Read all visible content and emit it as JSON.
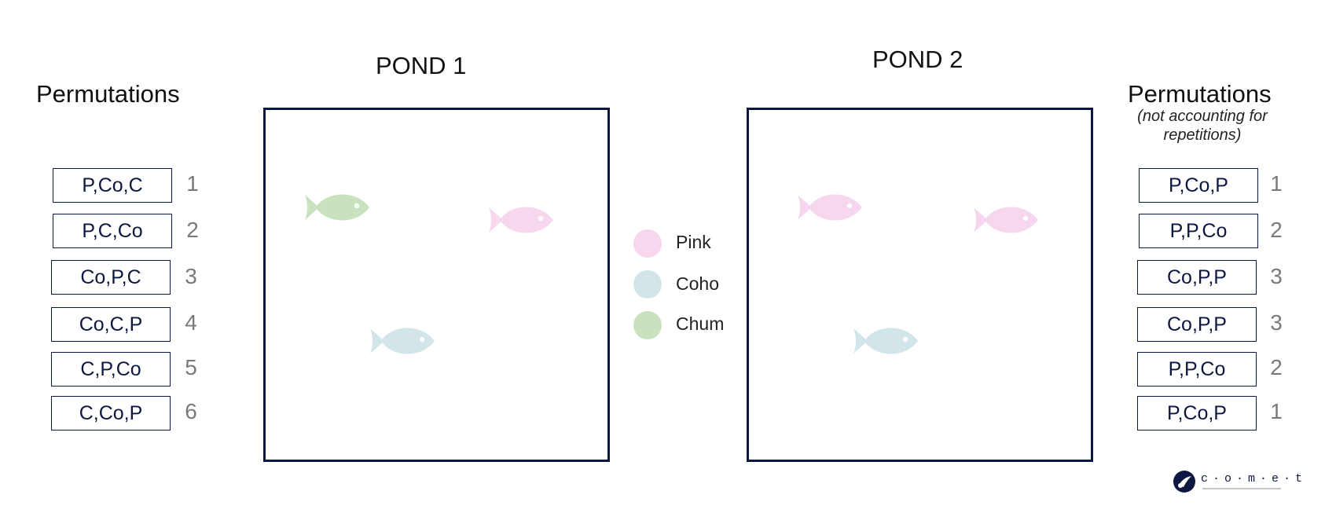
{
  "left_panel": {
    "heading": "Permutations",
    "items": [
      {
        "label": "P,Co,C",
        "number": "1"
      },
      {
        "label": "P,C,Co",
        "number": "2"
      },
      {
        "label": "Co,P,C",
        "number": "3"
      },
      {
        "label": "Co,C,P",
        "number": "4"
      },
      {
        "label": "C,P,Co",
        "number": "5"
      },
      {
        "label": "C,Co,P",
        "number": "6"
      }
    ]
  },
  "right_panel": {
    "heading": "Permutations",
    "note": "(not accounting for repetitions)",
    "items": [
      {
        "label": "P,Co,P",
        "number": "1"
      },
      {
        "label": "P,P,Co",
        "number": "2"
      },
      {
        "label": "Co,P,P",
        "number": "3"
      },
      {
        "label": "Co,P,P",
        "number": "3"
      },
      {
        "label": "P,P,Co",
        "number": "2"
      },
      {
        "label": "P,Co,P",
        "number": "1"
      }
    ]
  },
  "ponds": [
    {
      "title": "POND 1",
      "fish": [
        "Chum",
        "Pink",
        "Coho"
      ]
    },
    {
      "title": "POND 2",
      "fish": [
        "Pink",
        "Pink",
        "Coho"
      ]
    }
  ],
  "legend": [
    {
      "label": "Pink",
      "color": "#f6d7ee"
    },
    {
      "label": "Coho",
      "color": "#d2e6ea"
    },
    {
      "label": "Chum",
      "color": "#c9e2bd"
    }
  ],
  "colors": {
    "pink": "#f6d7ee",
    "coho": "#d2e6ea",
    "chum": "#c9e2bd",
    "navy": "#0d1840"
  },
  "logo": {
    "word": "c·o·m·e·t",
    "icon": "comet-logo-icon"
  }
}
